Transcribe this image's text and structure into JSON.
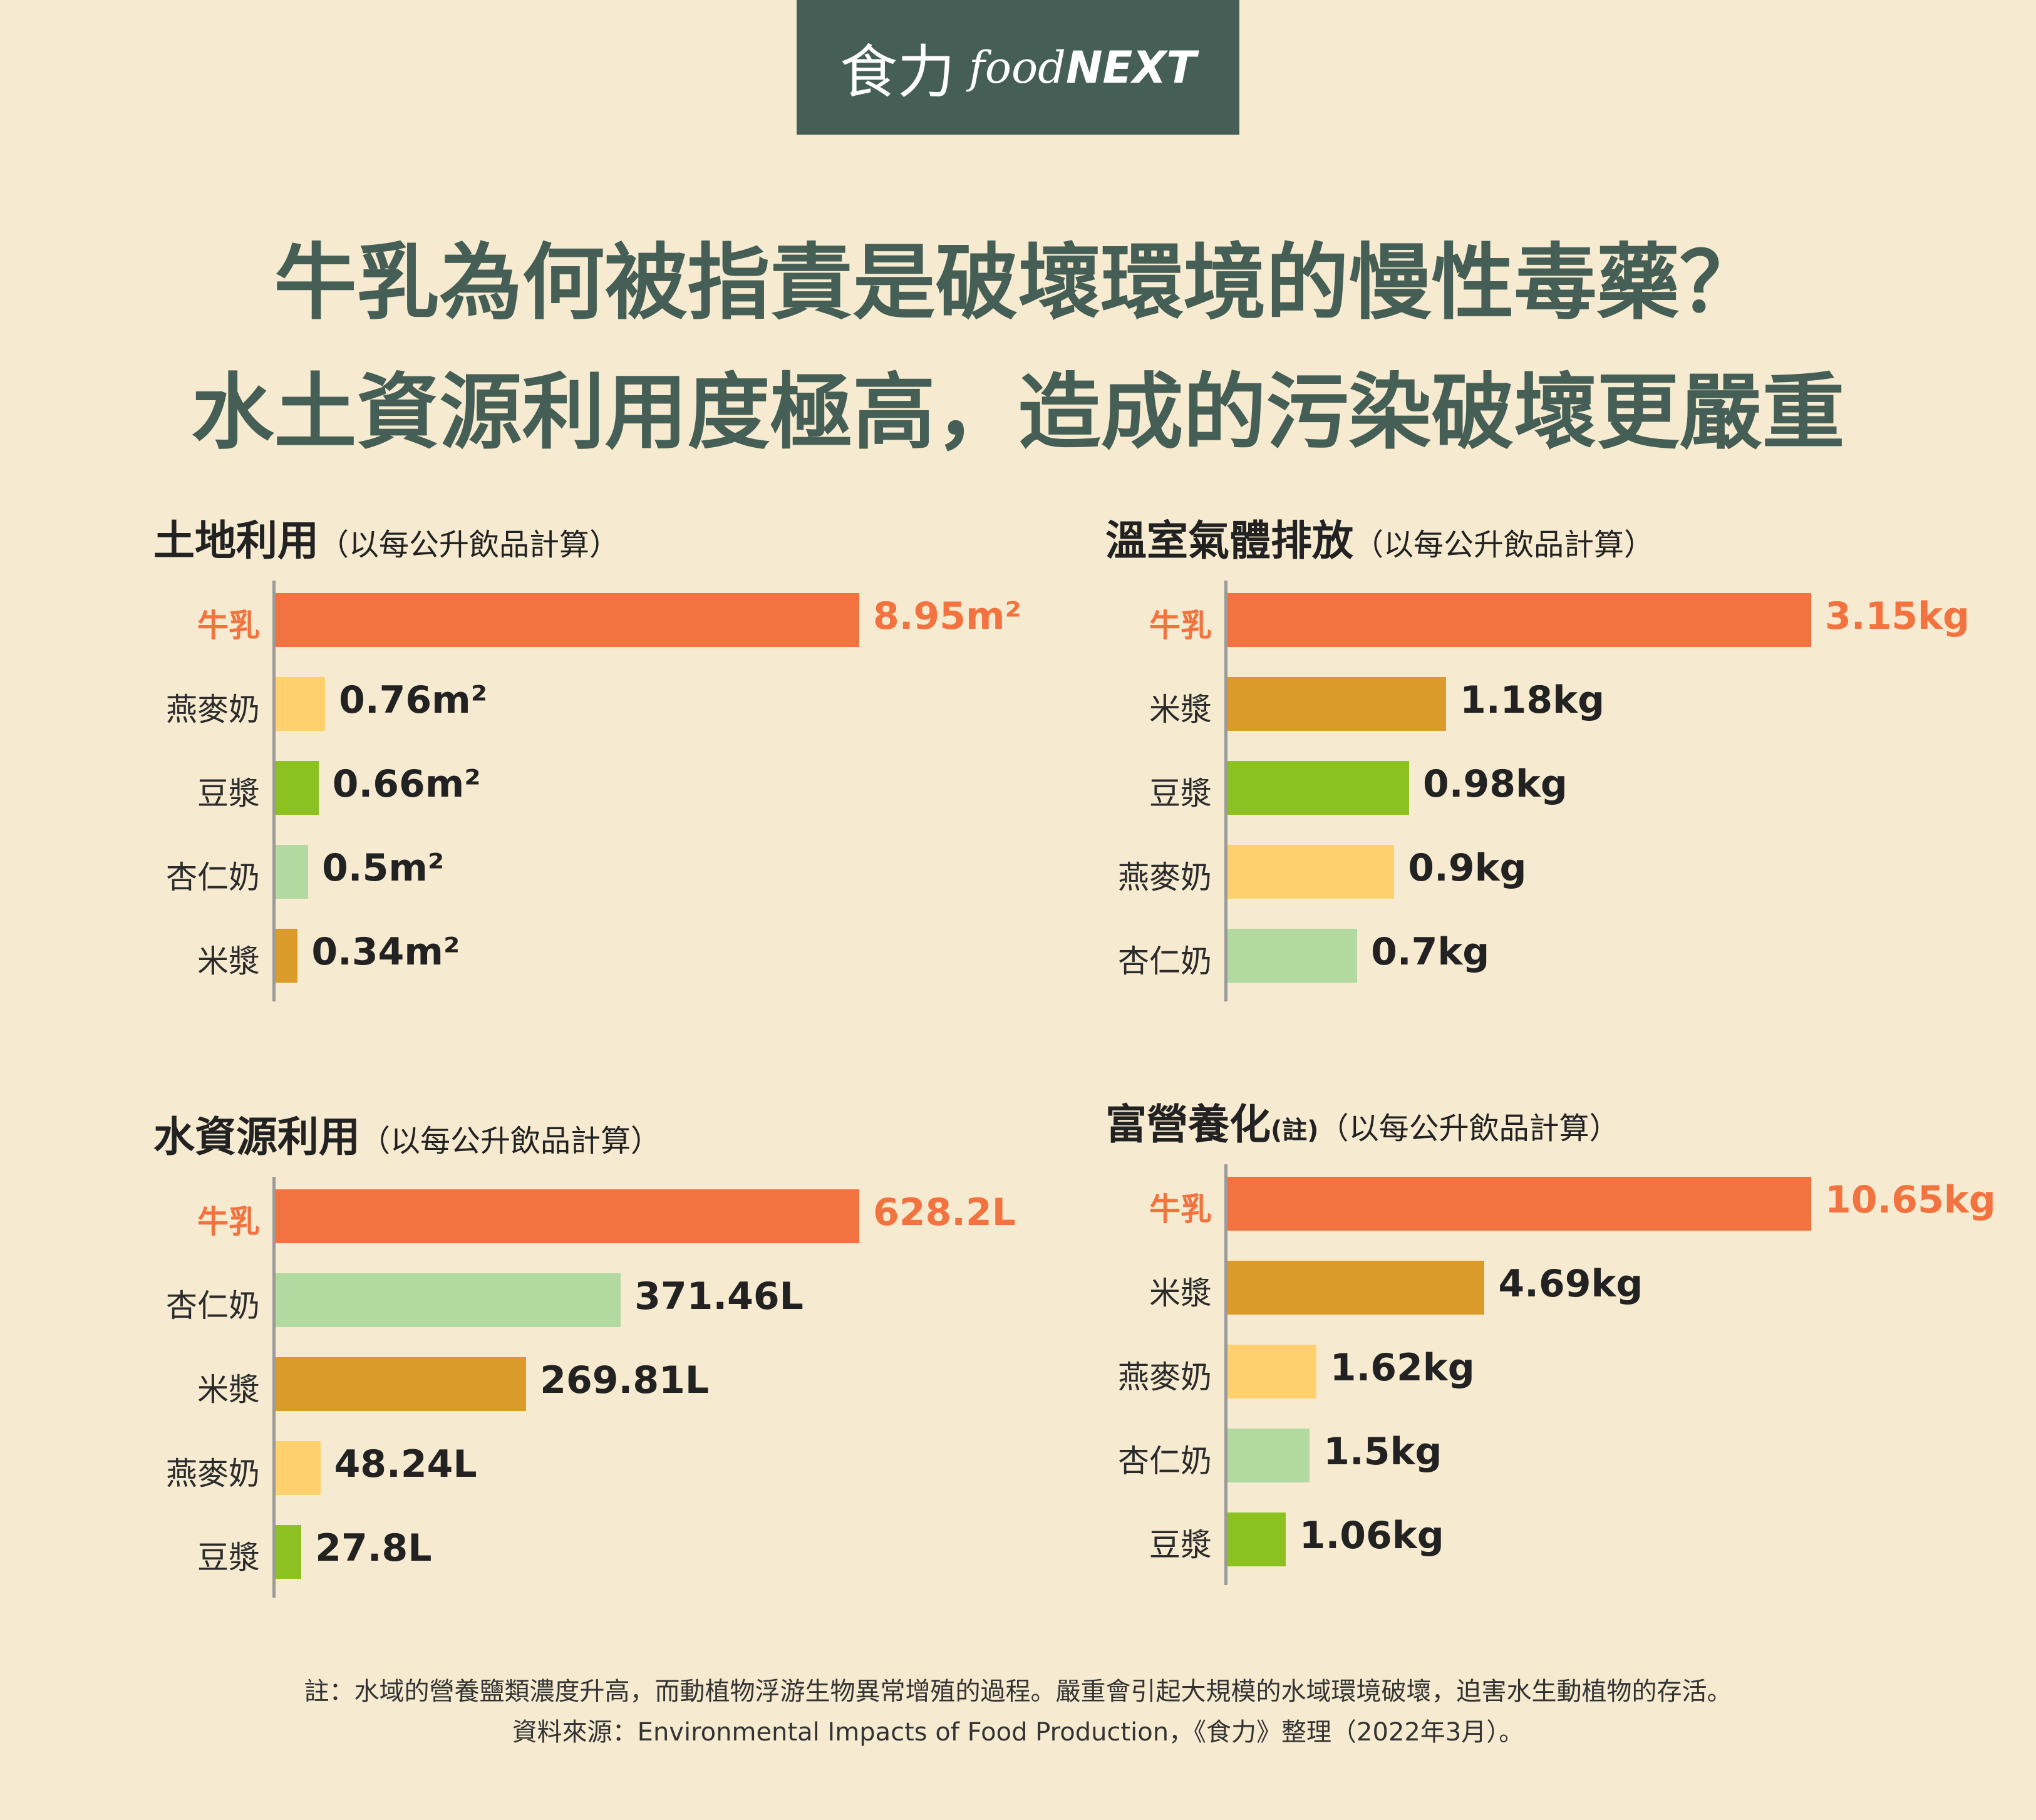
{
  "header": {
    "logo_cn": "食力",
    "logo_en_prefix": "food",
    "logo_en_suffix": "NEXT",
    "title_line1": "牛乳為何被指責是破壞環境的慢性毒藥？",
    "title_line2": "水土資源利用度極高，造成的污染破壞更嚴重"
  },
  "colors": {
    "牛乳": "#F2733F",
    "燕麥奶": "#FFD06E",
    "豆漿": "#8BC121",
    "杏仁奶": "#B1D9A0",
    "米漿": "#DA9B2B",
    "highlight_text": "#F2733F",
    "title": "#465F56"
  },
  "chart_data": [
    {
      "type": "bar",
      "orientation": "horizontal",
      "title": "土地利用",
      "subtitle": "（以每公升飲品計算）",
      "categories": [
        "牛乳",
        "燕麥奶",
        "豆漿",
        "杏仁奶",
        "米漿"
      ],
      "values": [
        8.95,
        0.76,
        0.66,
        0.5,
        0.34
      ],
      "value_labels": [
        "8.95m²",
        "0.76m²",
        "0.66m²",
        "0.5m²",
        "0.34m²"
      ],
      "unit": "m²"
    },
    {
      "type": "bar",
      "orientation": "horizontal",
      "title": "溫室氣體排放",
      "subtitle": "（以每公升飲品計算）",
      "categories": [
        "牛乳",
        "米漿",
        "豆漿",
        "燕麥奶",
        "杏仁奶"
      ],
      "values": [
        3.15,
        1.18,
        0.98,
        0.9,
        0.7
      ],
      "value_labels": [
        "3.15kg",
        "1.18kg",
        "0.98kg",
        "0.9kg",
        "0.7kg"
      ],
      "unit": "kg"
    },
    {
      "type": "bar",
      "orientation": "horizontal",
      "title": "水資源利用",
      "subtitle": "（以每公升飲品計算）",
      "categories": [
        "牛乳",
        "杏仁奶",
        "米漿",
        "燕麥奶",
        "豆漿"
      ],
      "values": [
        628.2,
        371.46,
        269.81,
        48.24,
        27.8
      ],
      "value_labels": [
        "628.2L",
        "371.46L",
        "269.81L",
        "48.24L",
        "27.8L"
      ],
      "unit": "L"
    },
    {
      "type": "bar",
      "orientation": "horizontal",
      "title": "富營養化",
      "title_note": "(註)",
      "subtitle": "（以每公升飲品計算）",
      "categories": [
        "牛乳",
        "米漿",
        "燕麥奶",
        "杏仁奶",
        "豆漿"
      ],
      "values": [
        10.65,
        4.69,
        1.62,
        1.5,
        1.06
      ],
      "value_labels": [
        "10.65kg",
        "4.69kg",
        "1.62kg",
        "1.5kg",
        "1.06kg"
      ],
      "unit": "kg"
    }
  ],
  "footer": {
    "note": "註：水域的營養鹽類濃度升高，而動植物浮游生物異常增殖的過程。嚴重會引起大規模的水域環境破壞，迫害水生動植物的存活。",
    "source": "資料來源：Environmental Impacts of Food Production，《食力》整理（2022年3月）。"
  }
}
